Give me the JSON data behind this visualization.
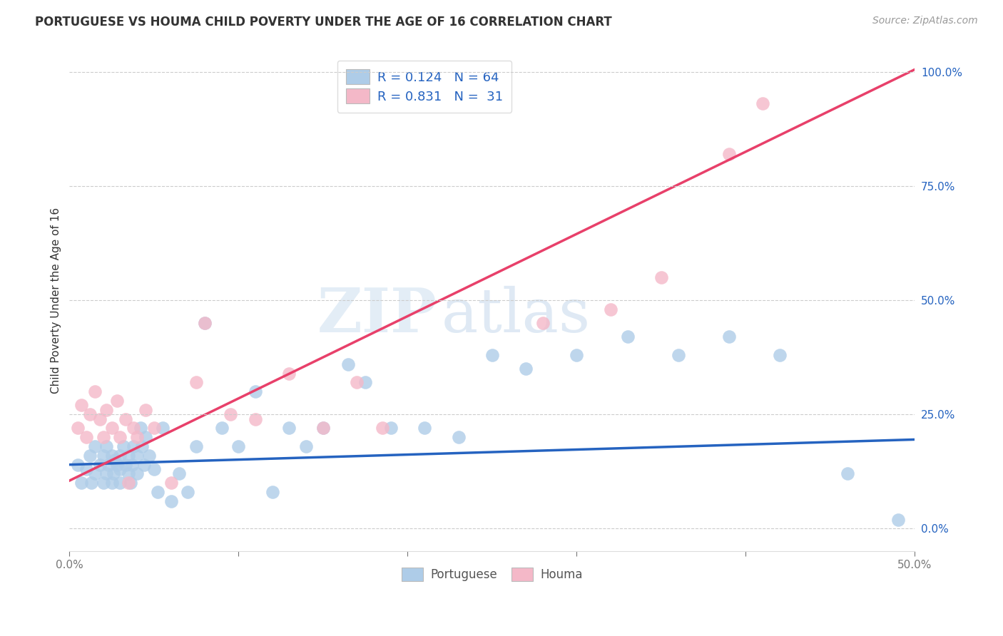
{
  "title": "PORTUGUESE VS HOUMA CHILD POVERTY UNDER THE AGE OF 16 CORRELATION CHART",
  "source": "Source: ZipAtlas.com",
  "ylabel": "Child Poverty Under the Age of 16",
  "xlim": [
    0,
    0.5
  ],
  "ylim": [
    -0.05,
    1.05
  ],
  "yticks_right": [
    0.0,
    0.25,
    0.5,
    0.75,
    1.0
  ],
  "ytick_labels_right": [
    "0.0%",
    "25.0%",
    "50.0%",
    "75.0%",
    "100.0%"
  ],
  "blue_R": 0.124,
  "blue_N": 64,
  "pink_R": 0.831,
  "pink_N": 31,
  "blue_color": "#aecce8",
  "blue_edge_color": "#aecce8",
  "blue_line_color": "#2563c0",
  "pink_color": "#f4b8c8",
  "pink_edge_color": "#f4b8c8",
  "pink_line_color": "#e8406a",
  "legend_label_blue": "Portuguese",
  "legend_label_pink": "Houma",
  "watermark_zip": "ZIP",
  "watermark_atlas": "atlas",
  "blue_scatter_x": [
    0.005,
    0.007,
    0.01,
    0.012,
    0.013,
    0.015,
    0.015,
    0.018,
    0.02,
    0.02,
    0.022,
    0.022,
    0.023,
    0.025,
    0.025,
    0.026,
    0.027,
    0.028,
    0.03,
    0.03,
    0.03,
    0.032,
    0.033,
    0.035,
    0.035,
    0.036,
    0.037,
    0.038,
    0.04,
    0.04,
    0.042,
    0.043,
    0.044,
    0.045,
    0.047,
    0.05,
    0.052,
    0.055,
    0.06,
    0.065,
    0.07,
    0.075,
    0.08,
    0.09,
    0.1,
    0.11,
    0.12,
    0.13,
    0.14,
    0.15,
    0.165,
    0.175,
    0.19,
    0.21,
    0.23,
    0.25,
    0.27,
    0.3,
    0.33,
    0.36,
    0.39,
    0.42,
    0.46,
    0.49
  ],
  "blue_scatter_y": [
    0.14,
    0.1,
    0.13,
    0.16,
    0.1,
    0.12,
    0.18,
    0.14,
    0.1,
    0.16,
    0.12,
    0.18,
    0.14,
    0.1,
    0.16,
    0.12,
    0.15,
    0.14,
    0.1,
    0.13,
    0.16,
    0.18,
    0.14,
    0.12,
    0.16,
    0.1,
    0.14,
    0.18,
    0.12,
    0.16,
    0.22,
    0.18,
    0.14,
    0.2,
    0.16,
    0.13,
    0.08,
    0.22,
    0.06,
    0.12,
    0.08,
    0.18,
    0.45,
    0.22,
    0.18,
    0.3,
    0.08,
    0.22,
    0.18,
    0.22,
    0.36,
    0.32,
    0.22,
    0.22,
    0.2,
    0.38,
    0.35,
    0.38,
    0.42,
    0.38,
    0.42,
    0.38,
    0.12,
    0.02
  ],
  "pink_scatter_x": [
    0.005,
    0.007,
    0.01,
    0.012,
    0.015,
    0.018,
    0.02,
    0.022,
    0.025,
    0.028,
    0.03,
    0.033,
    0.035,
    0.038,
    0.04,
    0.045,
    0.05,
    0.06,
    0.075,
    0.08,
    0.095,
    0.11,
    0.13,
    0.15,
    0.17,
    0.185,
    0.28,
    0.32,
    0.35,
    0.39,
    0.41
  ],
  "pink_scatter_y": [
    0.22,
    0.27,
    0.2,
    0.25,
    0.3,
    0.24,
    0.2,
    0.26,
    0.22,
    0.28,
    0.2,
    0.24,
    0.1,
    0.22,
    0.2,
    0.26,
    0.22,
    0.1,
    0.32,
    0.45,
    0.25,
    0.24,
    0.34,
    0.22,
    0.32,
    0.22,
    0.45,
    0.48,
    0.55,
    0.82,
    0.93
  ],
  "blue_trend_x": [
    0.0,
    0.5
  ],
  "blue_trend_y": [
    0.14,
    0.195
  ],
  "pink_trend_x": [
    0.0,
    0.5
  ],
  "pink_trend_y": [
    0.105,
    1.005
  ],
  "grid_color": "#cccccc",
  "grid_linestyle": "--",
  "spine_color": "#dddddd",
  "text_color": "#333333",
  "tick_color": "#777777",
  "title_fontsize": 12,
  "source_fontsize": 10,
  "axis_label_fontsize": 11,
  "tick_fontsize": 11,
  "legend_fontsize": 13
}
